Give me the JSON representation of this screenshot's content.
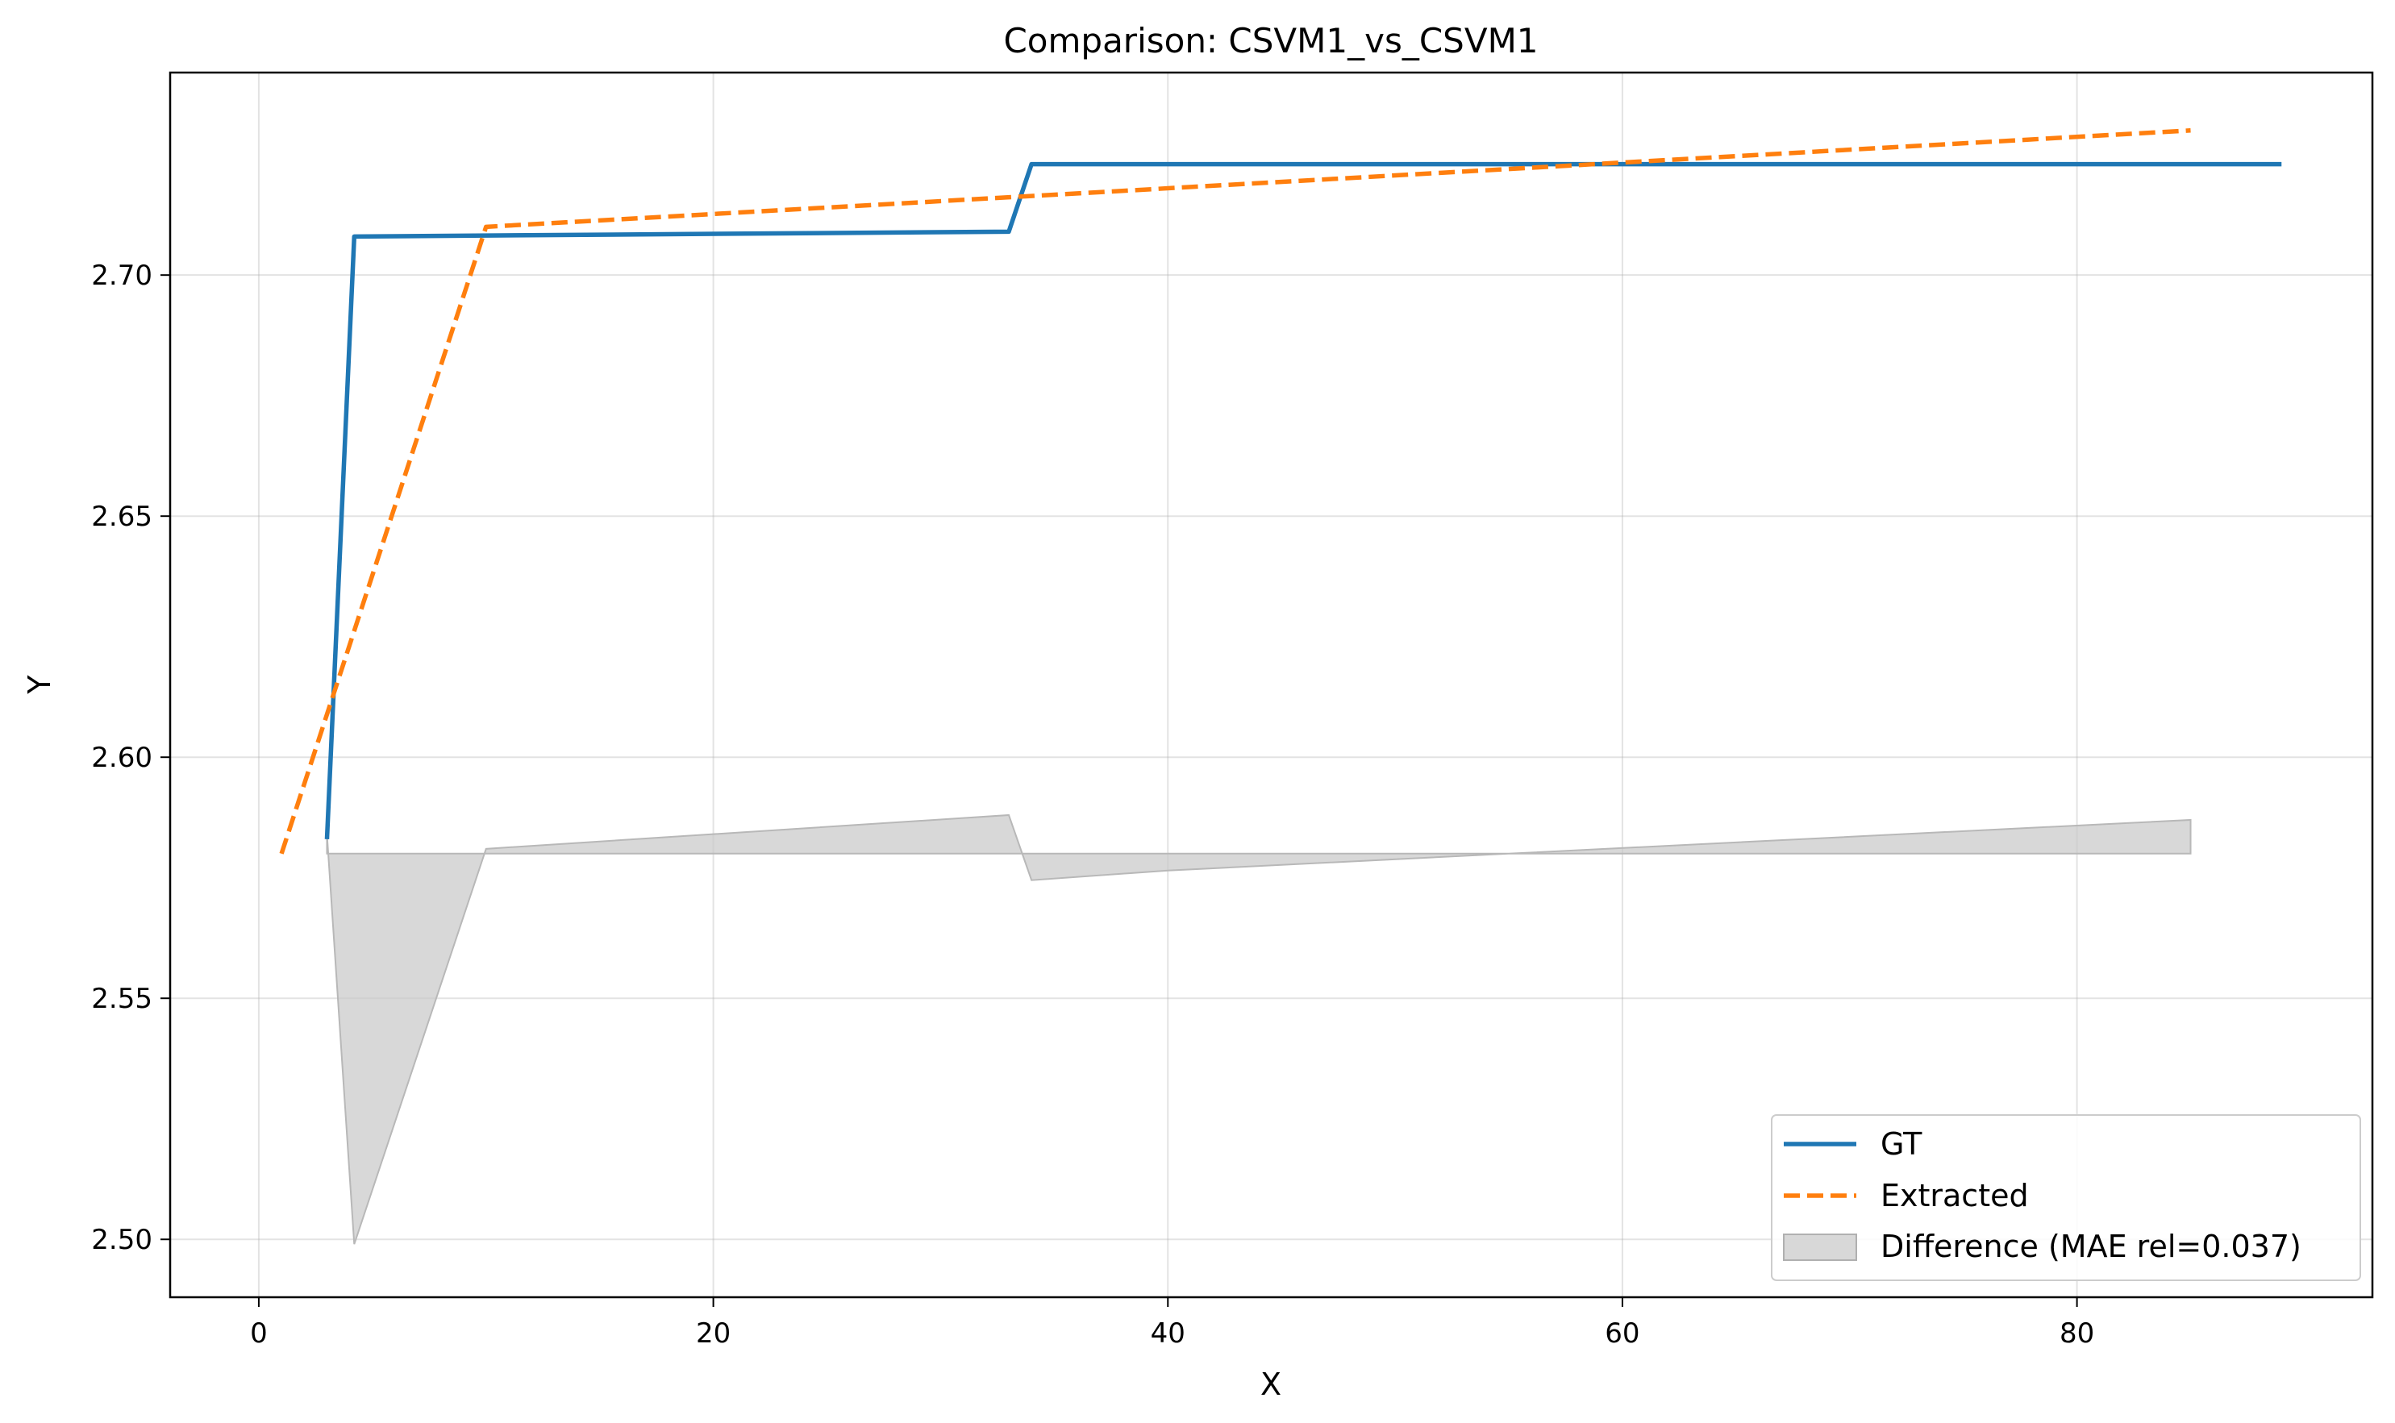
{
  "chart_data": {
    "type": "line",
    "title": "Comparison: CSVM1_vs_CSVM1",
    "xlabel": "X",
    "ylabel": "Y",
    "xlim": [
      -3.9,
      93.0
    ],
    "ylim": [
      2.488,
      2.742
    ],
    "xticks": [
      0,
      20,
      40,
      60,
      80
    ],
    "yticks": [
      2.5,
      2.55,
      2.6,
      2.65,
      2.7
    ],
    "ytick_labels": [
      "2.50",
      "2.55",
      "2.60",
      "2.65",
      "2.70"
    ],
    "grid": true,
    "legend_position": "bottom-right",
    "series": [
      {
        "name": "GT",
        "style": "solid",
        "color": "#1f77b4",
        "x": [
          3,
          4.2,
          33,
          34,
          89
        ],
        "y": [
          2.583,
          2.708,
          2.709,
          2.723,
          2.723
        ]
      },
      {
        "name": "Extracted",
        "style": "dashed",
        "color": "#ff7f0e",
        "x": [
          1,
          10,
          85
        ],
        "y": [
          2.58,
          2.71,
          2.73
        ]
      }
    ],
    "difference": {
      "name": "Difference (MAE rel=0.037)",
      "color": "#c8c8c8",
      "baseline": 2.58,
      "x": [
        3,
        4.2,
        10,
        33,
        34,
        40,
        55,
        85
      ],
      "y": [
        2.584,
        2.499,
        2.581,
        2.588,
        2.5745,
        2.5765,
        2.58,
        2.587
      ]
    }
  }
}
